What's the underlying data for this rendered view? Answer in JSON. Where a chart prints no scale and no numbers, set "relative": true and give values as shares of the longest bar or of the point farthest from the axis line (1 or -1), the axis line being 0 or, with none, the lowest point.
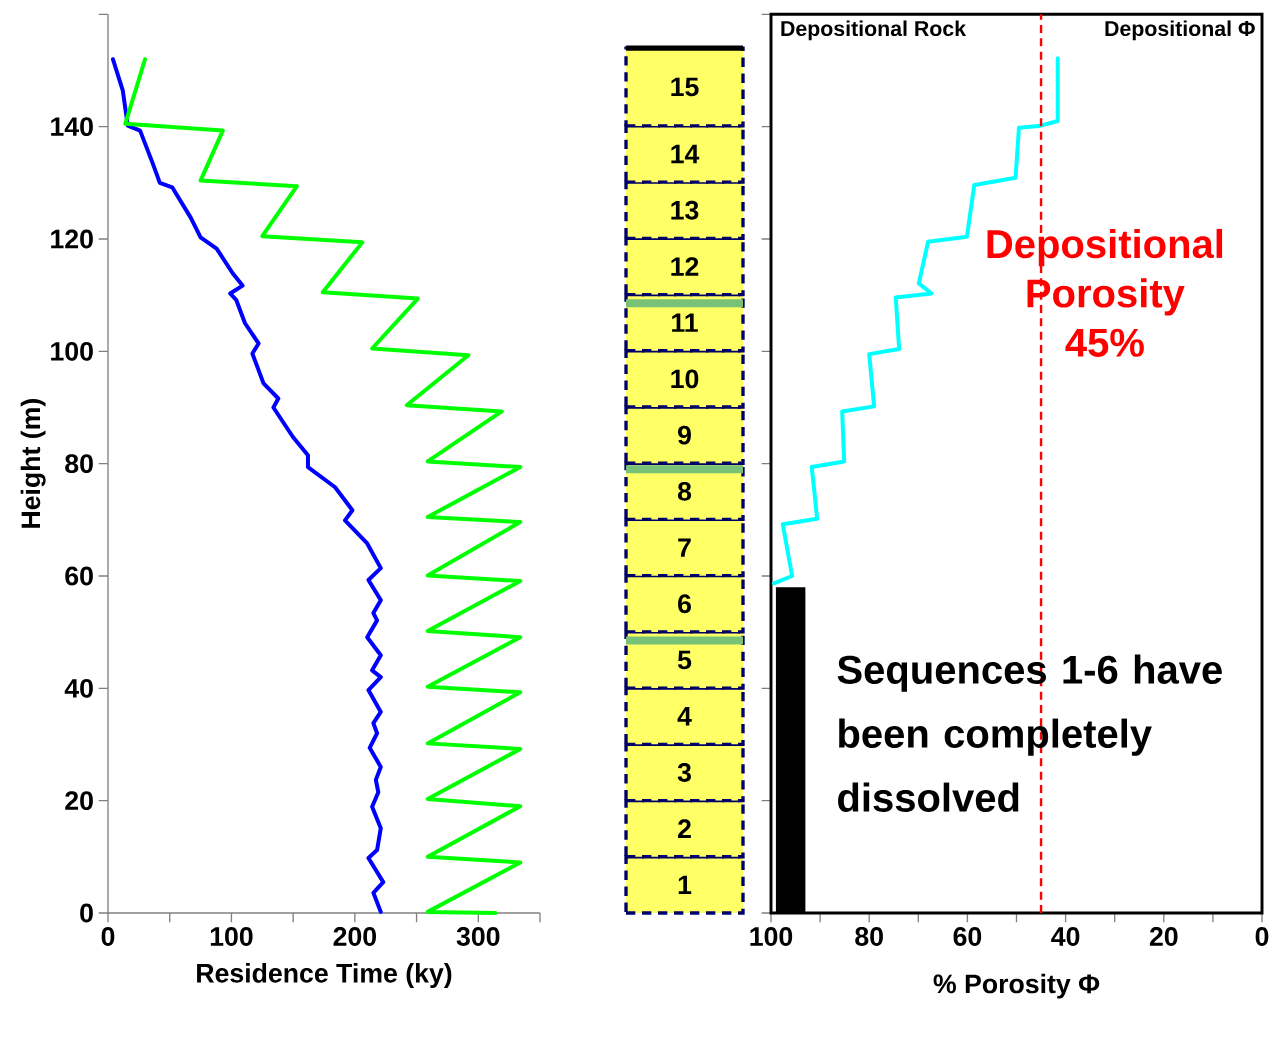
{
  "chart_data": [
    {
      "type": "line",
      "xlabel": "Residence Time (ky)",
      "ylabel": "Height (m)",
      "xlim": [
        0,
        350
      ],
      "xticks": [
        0,
        {
          "value": 50,
          "label": null
        },
        100,
        {
          "value": 150,
          "label": null
        },
        200,
        {
          "value": 250,
          "label": null
        },
        300,
        {
          "value": 350,
          "label": null
        }
      ],
      "ylim": [
        0,
        160
      ],
      "yticks": [
        0,
        20,
        40,
        60,
        80,
        100,
        120,
        140,
        {
          "value": 160,
          "label": null
        }
      ],
      "series": [
        {
          "color": "#0000ff",
          "x": [
            4,
            12,
            16,
            26,
            36,
            42,
            52,
            67,
            75,
            88,
            101,
            109,
            99,
            104,
            111,
            122,
            117,
            126,
            138,
            134,
            150,
            162,
            162,
            184,
            198,
            192,
            210,
            221,
            211,
            221,
            215,
            218,
            210,
            221,
            214,
            221,
            211,
            221,
            215,
            218,
            212,
            221,
            217,
            219,
            214,
            221,
            218,
            211,
            223,
            215,
            221
          ],
          "values": [
            152,
            146.4,
            140.2,
            139.3,
            133.6,
            130,
            129.2,
            123.8,
            120.3,
            118.3,
            113.9,
            111.7,
            110.3,
            109.1,
            105,
            101.4,
            99.6,
            94.3,
            91.6,
            90,
            84.7,
            81.5,
            79.4,
            75.8,
            71.7,
            69.9,
            65.8,
            61.4,
            59.3,
            55.7,
            53.4,
            52.1,
            49.1,
            45.9,
            43.2,
            42,
            39.7,
            35.8,
            33.8,
            32,
            29.4,
            26,
            23.7,
            21.5,
            18.9,
            15.1,
            11.2,
            9.8,
            5.5,
            3.6,
            0.2
          ]
        },
        {
          "color": "#00ff00",
          "x": [
            314,
            259,
            334,
            259,
            334,
            259,
            334,
            259,
            334,
            259,
            334,
            259,
            334,
            259,
            334,
            259,
            334,
            259,
            319,
            242,
            292,
            214,
            251,
            174,
            206,
            125,
            153,
            75,
            93,
            14,
            30
          ],
          "values": [
            0,
            0.2,
            9,
            10,
            19,
            20.3,
            29.2,
            30.2,
            39.3,
            40.3,
            49.1,
            50.2,
            59.1,
            60.1,
            69.6,
            70.5,
            79.4,
            80.4,
            89.3,
            90.4,
            99.3,
            100.5,
            109.4,
            110.5,
            119.4,
            120.5,
            129.4,
            130.4,
            139.3,
            140.5,
            152
          ]
        }
      ]
    },
    {
      "type": "bar",
      "stacked": true,
      "relative": true,
      "categories": [
        null
      ],
      "tick_labels": false,
      "ref_lines": [
        {
          "axis": "y",
          "value": 0.315,
          "color": "#77c277"
        },
        {
          "axis": "y",
          "value": 0.513,
          "color": "#77c277"
        },
        {
          "axis": "y",
          "value": 0.705,
          "color": "#77c277"
        }
      ],
      "series": [
        {
          "name": "1",
          "color": "#ffff66",
          "values": [
            0.065
          ]
        },
        {
          "name": "2",
          "color": "#ffff66",
          "values": [
            0.065
          ]
        },
        {
          "name": "3",
          "color": "#ffff66",
          "values": [
            0.065
          ]
        },
        {
          "name": "4",
          "color": "#ffff66",
          "values": [
            0.065
          ]
        },
        {
          "name": "5",
          "color": "#ffff66",
          "values": [
            0.065
          ]
        },
        {
          "name": "6",
          "color": "#ffff66",
          "values": [
            0.065
          ]
        },
        {
          "name": "7",
          "color": "#ffff66",
          "values": [
            0.065
          ]
        },
        {
          "name": "8",
          "color": "#ffff66",
          "values": [
            0.065
          ]
        },
        {
          "name": "9",
          "color": "#ffff66",
          "values": [
            0.065
          ]
        },
        {
          "name": "10",
          "color": "#ffff66",
          "values": [
            0.065
          ]
        },
        {
          "name": "11",
          "color": "#ffff66",
          "values": [
            0.065
          ]
        },
        {
          "name": "12",
          "color": "#ffff66",
          "values": [
            0.065
          ]
        },
        {
          "name": "13",
          "color": "#ffff66",
          "values": [
            0.065
          ]
        },
        {
          "name": "14",
          "color": "#ffff66",
          "values": [
            0.065
          ]
        },
        {
          "name": "15",
          "color": "#ffff66",
          "values": [
            0.09
          ]
        }
      ]
    },
    {
      "type": "line",
      "xlabel": "% Porosity Φ",
      "xlim": [
        100,
        0
      ],
      "xticks": [
        100,
        {
          "value": 90,
          "label": null
        },
        80,
        {
          "value": 70,
          "label": null
        },
        60,
        {
          "value": 50,
          "label": null
        },
        40,
        {
          "value": 30,
          "label": null
        },
        20,
        {
          "value": 10,
          "label": null
        },
        0
      ],
      "ylim": [
        0,
        160
      ],
      "yticks": [
        {
          "value": 0,
          "label": null
        },
        {
          "value": 20,
          "label": null
        },
        {
          "value": 40,
          "label": null
        },
        {
          "value": 60,
          "label": null
        },
        {
          "value": 80,
          "label": null
        },
        {
          "value": 100,
          "label": null
        },
        {
          "value": 120,
          "label": null
        },
        {
          "value": 140,
          "label": null
        },
        {
          "value": 160,
          "label": null
        }
      ],
      "tick_labels": "x",
      "annotations": [
        "Depositional Rock",
        "Depositional Φ",
        "Sequences 1-6 have been completely dissolved"
      ],
      "ref_lines": [
        {
          "axis": "x",
          "value": 45,
          "label": "Depositional Porosity 45%",
          "color": "#ff0000",
          "line_style": "dashed"
        }
      ],
      "series": [
        {
          "color": "#00ffff",
          "x": [
            41.6,
            41.6,
            45.5,
            49.5,
            50.2,
            58.6,
            60.1,
            68.0,
            69.9,
            67.3,
            74.6,
            73.9,
            80,
            79,
            85.5,
            85.1,
            91.7,
            90.6,
            97.6,
            95.7,
            99.4
          ],
          "values": [
            152.2,
            141,
            140.1,
            139.8,
            130.9,
            129.6,
            120.4,
            119.5,
            112.1,
            110.3,
            109.6,
            100.4,
            99.5,
            90.2,
            89.3,
            80.4,
            79.4,
            70.2,
            69.2,
            60,
            58.7
          ]
        },
        {
          "type": "area",
          "color": "#000000",
          "x": [
            99,
            93,
            93,
            99
          ],
          "values": [
            0,
            0,
            58,
            58
          ]
        }
      ]
    }
  ]
}
